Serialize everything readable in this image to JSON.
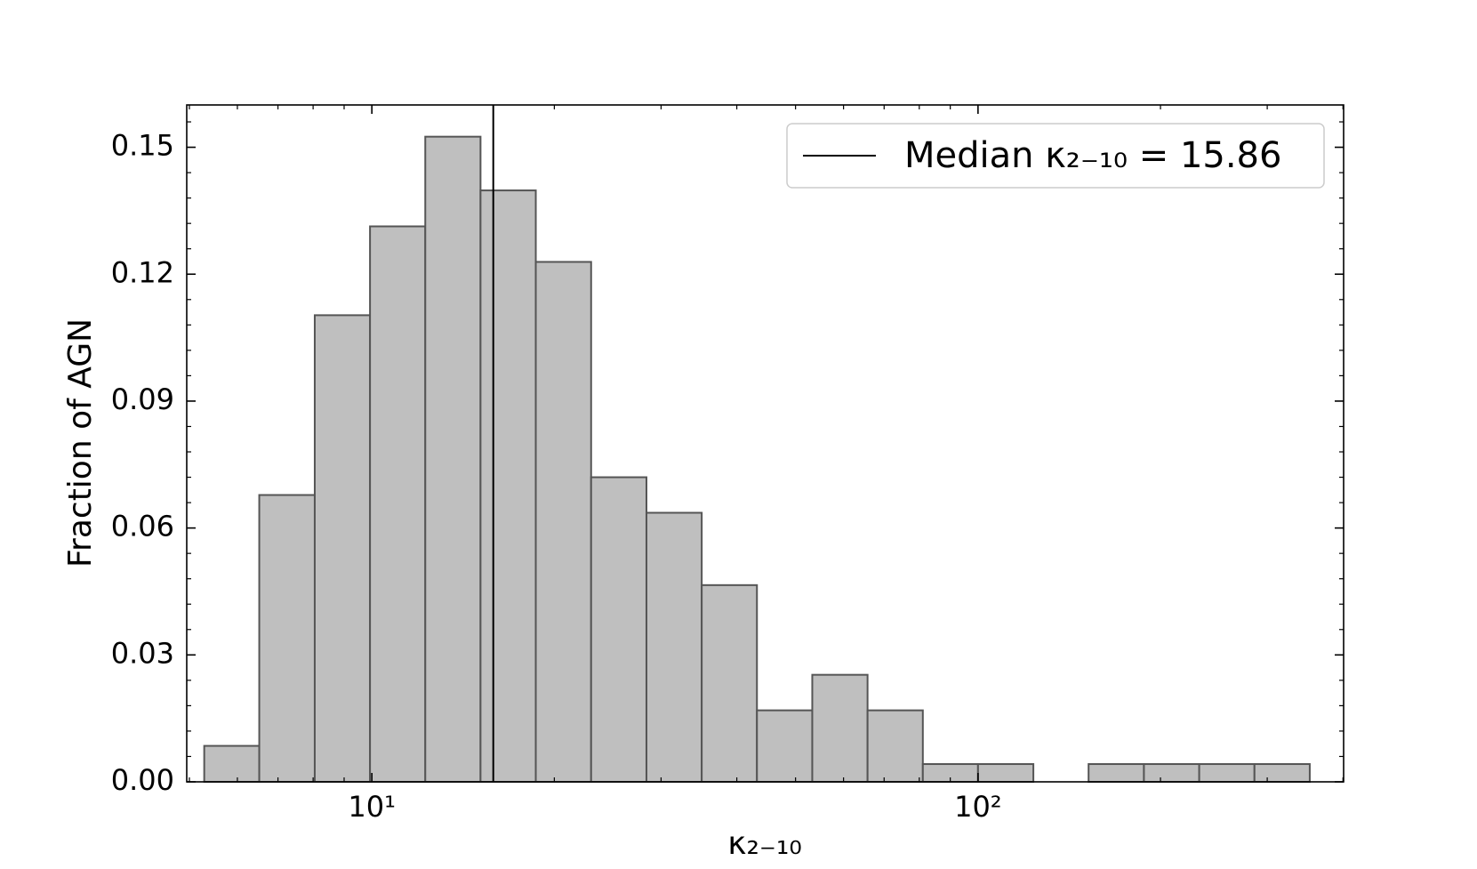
{
  "chart_data": {
    "type": "histogram",
    "xlabel": "κ₂₋₁₀",
    "ylabel": "Fraction of AGN",
    "bins": [
      5.29,
      6.52,
      8.05,
      9.93,
      12.25,
      15.11,
      18.64,
      23.0,
      28.38,
      35.01,
      43.18,
      53.28,
      65.73,
      81.09,
      100.0,
      123.4,
      152.2,
      187.8,
      231.7,
      285.8,
      352.6
    ],
    "values": [
      0.0085,
      0.0678,
      0.1103,
      0.1313,
      0.1525,
      0.1398,
      0.1229,
      0.072,
      0.0636,
      0.0465,
      0.0169,
      0.0253,
      0.0169,
      0.0042,
      0.0042,
      0,
      0.0042,
      0.0042,
      0.0042,
      0.0042
    ],
    "color": "#bfbfbf",
    "edgecolor": "#555555",
    "xscale": "log",
    "xlim": [
      4.95,
      401
    ],
    "ylim": [
      0,
      0.16
    ],
    "xticks": [
      {
        "value": 10,
        "label": "10¹"
      },
      {
        "value": 100,
        "label": "10²"
      }
    ],
    "yticks": [
      {
        "value": 0,
        "label": "0.00"
      },
      0.03,
      0.06,
      0.09,
      0.12,
      0.15
    ],
    "median": {
      "value": 15.86,
      "label": "Median κ₂₋₁₀ = 15.86",
      "color": "#000000"
    },
    "legend": "upper right"
  }
}
